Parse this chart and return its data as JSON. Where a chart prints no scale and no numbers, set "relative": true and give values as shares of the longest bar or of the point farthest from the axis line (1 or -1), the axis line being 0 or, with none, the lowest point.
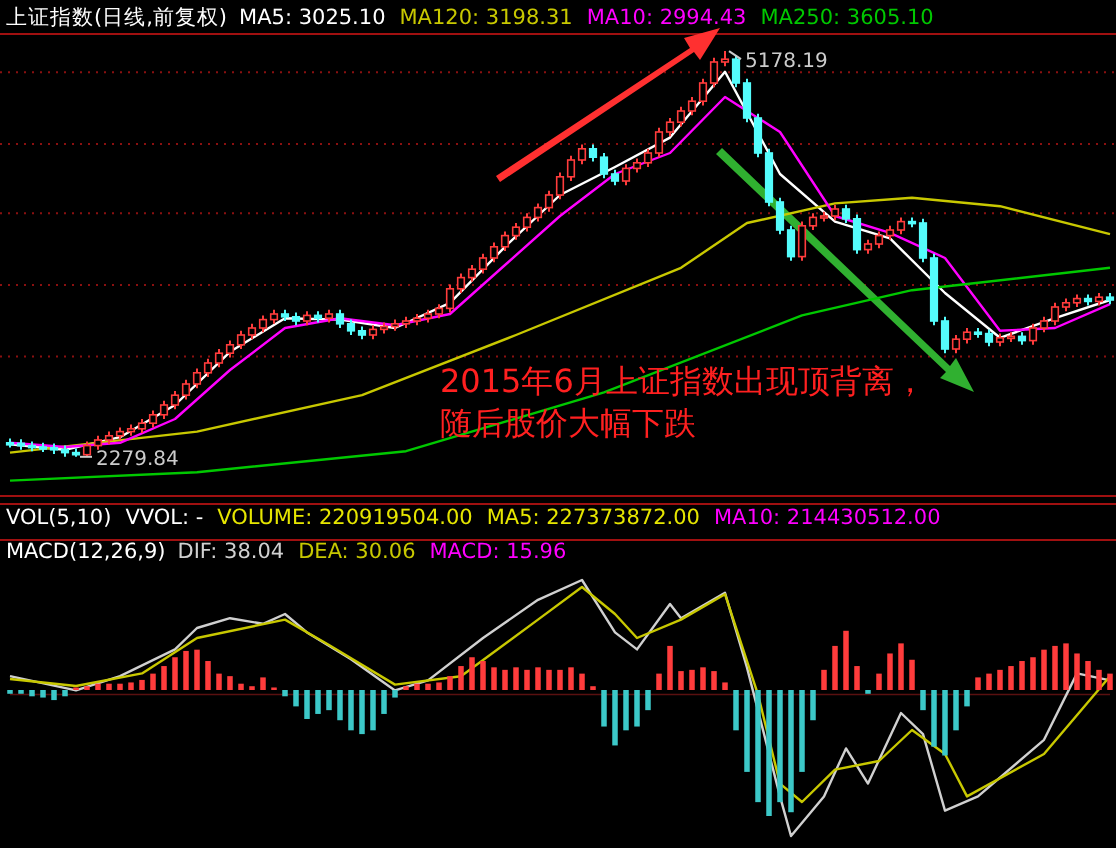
{
  "chart_data": [
    {
      "type": "candlestick",
      "title": "上证指数(日线,前复权)",
      "legend": "top left",
      "grid": "y",
      "colors": [
        "#54fcfc",
        "#54fcfc",
        "#54fcfc",
        "#54fcfc",
        "#54fcfc",
        "#54fcfc",
        "#54fcfc",
        "#ff3c3c",
        "#ff3c3c",
        "#ff3c3c",
        "#ff3c3c",
        "#ff3c3c",
        "#ff3c3c",
        "#ff3c3c",
        "#ff3c3c",
        "#ff3c3c",
        "#ff3c3c",
        "#ff3c3c",
        "#ff3c3c",
        "#ff3c3c",
        "#ff3c3c",
        "#ff3c3c",
        "#ff3c3c",
        "#ff3c3c",
        "#ff3c3c",
        "#54fcfc",
        "#54fcfc",
        "#ff3c3c",
        "#54fcfc",
        "#ff3c3c",
        "#54fcfc",
        "#54fcfc",
        "#54fcfc",
        "#ff3c3c",
        "#ff3c3c",
        "#ff3c3c",
        "#ff3c3c",
        "#ff3c3c",
        "#ff3c3c",
        "#ff3c3c",
        "#ff3c3c",
        "#ff3c3c",
        "#ff3c3c",
        "#ff3c3c",
        "#ff3c3c",
        "#ff3c3c",
        "#ff3c3c",
        "#ff3c3c",
        "#ff3c3c",
        "#ff3c3c",
        "#ff3c3c",
        "#ff3c3c",
        "#ff3c3c",
        "#54fcfc",
        "#54fcfc",
        "#54fcfc",
        "#ff3c3c",
        "#ff3c3c",
        "#ff3c3c",
        "#ff3c3c",
        "#ff3c3c",
        "#ff3c3c",
        "#ff3c3c",
        "#ff3c3c",
        "#ff3c3c",
        "#ff3c3c",
        "#54fcfc",
        "#54fcfc",
        "#54fcfc",
        "#54fcfc",
        "#54fcfc",
        "#54fcfc",
        "#ff3c3c",
        "#ff3c3c",
        "#ff3c3c",
        "#ff3c3c",
        "#54fcfc",
        "#54fcfc",
        "#ff3c3c",
        "#ff3c3c",
        "#ff3c3c",
        "#ff3c3c",
        "#54fcfc",
        "#54fcfc",
        "#54fcfc",
        "#54fcfc",
        "#ff3c3c",
        "#ff3c3c",
        "#54fcfc",
        "#54fcfc",
        "#ff3c3c",
        "#ff3c3c",
        "#54fcfc",
        "#ff3c3c",
        "#ff3c3c",
        "#ff3c3c",
        "#ff3c3c",
        "#ff3c3c",
        "#54fcfc",
        "#ff3c3c",
        "#54fcfc"
      ],
      "ylim": [
        2000,
        5300
      ],
      "yticks": [
        {
          "value": 2997,
          "label": null
        },
        {
          "value": 3508,
          "label": null
        },
        {
          "value": 4019,
          "label": null
        },
        {
          "value": 4515,
          "label": null
        },
        {
          "value": 5026,
          "label": null
        }
      ],
      "categories": [
        null,
        null,
        null,
        null,
        null,
        null,
        null,
        null,
        null,
        null,
        null,
        null,
        null,
        null,
        null,
        null,
        null,
        null,
        null,
        null,
        null,
        null,
        null,
        null,
        null,
        null,
        null,
        null,
        null,
        null,
        null,
        null,
        null,
        null,
        null,
        null,
        null,
        null,
        null,
        null,
        null,
        null,
        null,
        null,
        null,
        null,
        null,
        null,
        null,
        null,
        null,
        null,
        null,
        null,
        null,
        null,
        null,
        null,
        null,
        null,
        null,
        null,
        null,
        null,
        null,
        null,
        null,
        null,
        null,
        null,
        null,
        null,
        null,
        null,
        null,
        null,
        null,
        null,
        null,
        null,
        null,
        null,
        null,
        null,
        null,
        null,
        null,
        null,
        null,
        null,
        null,
        null,
        null,
        null,
        null,
        null,
        null,
        null,
        null,
        null,
        null
      ],
      "ohlc": [
        [
          2380,
          2410,
          2346,
          2376
        ],
        [
          2376,
          2406,
          2330,
          2360
        ],
        [
          2360,
          2390,
          2320,
          2350
        ],
        [
          2350,
          2380,
          2315,
          2345
        ],
        [
          2345,
          2375,
          2300,
          2330
        ],
        [
          2330,
          2360,
          2280,
          2310
        ],
        [
          2310,
          2340,
          2279.84,
          2295
        ],
        [
          2295,
          2390,
          2285,
          2360
        ],
        [
          2360,
          2430,
          2330,
          2400
        ],
        [
          2400,
          2460,
          2370,
          2430
        ],
        [
          2430,
          2490,
          2400,
          2460
        ],
        [
          2460,
          2510,
          2430,
          2480
        ],
        [
          2480,
          2550,
          2450,
          2520
        ],
        [
          2520,
          2610,
          2490,
          2580
        ],
        [
          2580,
          2680,
          2550,
          2650
        ],
        [
          2650,
          2750,
          2620,
          2720
        ],
        [
          2720,
          2830,
          2690,
          2800
        ],
        [
          2800,
          2910,
          2770,
          2880
        ],
        [
          2880,
          2980,
          2850,
          2950
        ],
        [
          2950,
          3050,
          2920,
          3020
        ],
        [
          3020,
          3110,
          2990,
          3080
        ],
        [
          3080,
          3180,
          3050,
          3150
        ],
        [
          3150,
          3230,
          3120,
          3200
        ],
        [
          3200,
          3290,
          3170,
          3260
        ],
        [
          3260,
          3330,
          3230,
          3300
        ],
        [
          3300,
          3330,
          3250,
          3280
        ],
        [
          3280,
          3310,
          3220,
          3250
        ],
        [
          3250,
          3320,
          3220,
          3290
        ],
        [
          3290,
          3320,
          3240,
          3270
        ],
        [
          3270,
          3330,
          3240,
          3300
        ],
        [
          3300,
          3330,
          3200,
          3230
        ],
        [
          3230,
          3260,
          3150,
          3180
        ],
        [
          3180,
          3210,
          3120,
          3150
        ],
        [
          3150,
          3220,
          3120,
          3190
        ],
        [
          3190,
          3240,
          3160,
          3210
        ],
        [
          3210,
          3260,
          3180,
          3230
        ],
        [
          3230,
          3280,
          3200,
          3250
        ],
        [
          3250,
          3300,
          3220,
          3270
        ],
        [
          3270,
          3330,
          3240,
          3300
        ],
        [
          3300,
          3370,
          3270,
          3340
        ],
        [
          3340,
          3510,
          3310,
          3480
        ],
        [
          3480,
          3590,
          3450,
          3560
        ],
        [
          3560,
          3650,
          3530,
          3620
        ],
        [
          3620,
          3730,
          3590,
          3700
        ],
        [
          3700,
          3810,
          3670,
          3780
        ],
        [
          3780,
          3890,
          3750,
          3860
        ],
        [
          3860,
          3950,
          3830,
          3920
        ],
        [
          3920,
          4020,
          3890,
          3990
        ],
        [
          3990,
          4090,
          3960,
          4060
        ],
        [
          4060,
          4180,
          4030,
          4150
        ],
        [
          4150,
          4310,
          4120,
          4280
        ],
        [
          4280,
          4430,
          4250,
          4400
        ],
        [
          4400,
          4510,
          4370,
          4480
        ],
        [
          4480,
          4510,
          4390,
          4420
        ],
        [
          4420,
          4450,
          4270,
          4300
        ],
        [
          4300,
          4330,
          4220,
          4250
        ],
        [
          4250,
          4370,
          4220,
          4340
        ],
        [
          4340,
          4410,
          4310,
          4380
        ],
        [
          4380,
          4480,
          4350,
          4450
        ],
        [
          4450,
          4630,
          4420,
          4600
        ],
        [
          4600,
          4700,
          4570,
          4670
        ],
        [
          4670,
          4780,
          4640,
          4750
        ],
        [
          4750,
          4850,
          4720,
          4820
        ],
        [
          4820,
          4980,
          4790,
          4950
        ],
        [
          4950,
          5130,
          4920,
          5100
        ],
        [
          5100,
          5178.19,
          5070,
          5120
        ],
        [
          5120,
          5150,
          4920,
          4950
        ],
        [
          4950,
          4980,
          4670,
          4700
        ],
        [
          4700,
          4730,
          4420,
          4450
        ],
        [
          4450,
          4480,
          4070,
          4100
        ],
        [
          4100,
          4130,
          3870,
          3900
        ],
        [
          3900,
          3930,
          3680,
          3710
        ],
        [
          3710,
          3960,
          3680,
          3930
        ],
        [
          3930,
          4020,
          3900,
          3990
        ],
        [
          3990,
          4030,
          3960,
          4000
        ],
        [
          4000,
          4080,
          3970,
          4050
        ],
        [
          4050,
          4080,
          3950,
          3980
        ],
        [
          3980,
          4010,
          3730,
          3760
        ],
        [
          3760,
          3830,
          3730,
          3800
        ],
        [
          3800,
          3890,
          3770,
          3860
        ],
        [
          3860,
          3930,
          3830,
          3900
        ],
        [
          3900,
          3990,
          3870,
          3960
        ],
        [
          3960,
          3990,
          3920,
          3950
        ],
        [
          3950,
          3980,
          3670,
          3700
        ],
        [
          3700,
          3730,
          3220,
          3250
        ],
        [
          3250,
          3280,
          3020,
          3050
        ],
        [
          3050,
          3150,
          3020,
          3120
        ],
        [
          3120,
          3200,
          3090,
          3170
        ],
        [
          3170,
          3200,
          3130,
          3160
        ],
        [
          3160,
          3190,
          3070,
          3100
        ],
        [
          3100,
          3160,
          3070,
          3130
        ],
        [
          3130,
          3170,
          3100,
          3140
        ],
        [
          3140,
          3170,
          3080,
          3110
        ],
        [
          3110,
          3230,
          3080,
          3200
        ],
        [
          3200,
          3280,
          3170,
          3250
        ],
        [
          3250,
          3380,
          3220,
          3350
        ],
        [
          3350,
          3410,
          3320,
          3380
        ],
        [
          3380,
          3440,
          3350,
          3410
        ],
        [
          3410,
          3440,
          3360,
          3390
        ],
        [
          3390,
          3450,
          3360,
          3420
        ],
        [
          3420,
          3450,
          3370,
          3400
        ]
      ],
      "series": [
        {
          "name": "MA5: 3025.10",
          "type": "line",
          "color": "#ffffff",
          "values": [
            2370,
            null,
            null,
            null,
            null,
            2330,
            null,
            null,
            null,
            null,
            2420,
            null,
            null,
            null,
            null,
            2650,
            null,
            null,
            null,
            null,
            3030,
            null,
            null,
            null,
            null,
            3270,
            null,
            null,
            null,
            null,
            3260,
            null,
            null,
            null,
            null,
            3200,
            null,
            null,
            null,
            null,
            3380,
            null,
            null,
            null,
            null,
            3780,
            null,
            null,
            null,
            null,
            4150,
            null,
            null,
            null,
            null,
            4350,
            null,
            null,
            null,
            null,
            4560,
            null,
            null,
            null,
            null,
            5030,
            null,
            null,
            null,
            null,
            4300,
            null,
            null,
            null,
            null,
            3960,
            null,
            null,
            null,
            null,
            3840,
            null,
            null,
            null,
            null,
            3450,
            null,
            null,
            null,
            null,
            3130,
            null,
            null,
            null,
            null,
            3270,
            null,
            null,
            null,
            null,
            3400
          ]
        },
        {
          "name": "MA120: 3198.31",
          "type": "line",
          "color": "#c8c800",
          "values": [
            2310,
            null,
            null,
            null,
            null,
            null,
            null,
            null,
            null,
            null,
            null,
            null,
            null,
            null,
            null,
            null,
            null,
            2460,
            null,
            null,
            null,
            null,
            null,
            null,
            null,
            null,
            null,
            null,
            null,
            null,
            null,
            null,
            2720,
            null,
            null,
            null,
            null,
            null,
            null,
            null,
            null,
            null,
            null,
            null,
            null,
            null,
            3150,
            null,
            null,
            null,
            null,
            null,
            null,
            null,
            null,
            null,
            null,
            null,
            null,
            null,
            null,
            3630,
            null,
            null,
            null,
            null,
            null,
            3950,
            null,
            null,
            null,
            null,
            null,
            null,
            null,
            4090,
            null,
            null,
            null,
            null,
            null,
            null,
            4130,
            null,
            null,
            null,
            null,
            null,
            null,
            null,
            4070,
            null,
            null,
            null,
            null,
            null,
            null,
            null,
            null,
            null,
            3870
          ]
        },
        {
          "name": "MA10: 2994.43",
          "type": "line",
          "color": "#ff00ff",
          "values": [
            2380,
            null,
            null,
            null,
            null,
            2350,
            null,
            null,
            null,
            null,
            2380,
            null,
            null,
            null,
            null,
            2550,
            null,
            null,
            null,
            null,
            2900,
            null,
            null,
            null,
            null,
            3200,
            null,
            null,
            null,
            null,
            3270,
            null,
            null,
            null,
            null,
            3220,
            null,
            null,
            null,
            null,
            3300,
            null,
            null,
            null,
            null,
            3650,
            null,
            null,
            null,
            null,
            4000,
            null,
            null,
            null,
            null,
            4300,
            null,
            null,
            null,
            null,
            4450,
            null,
            null,
            null,
            null,
            4850,
            null,
            null,
            null,
            null,
            4600,
            null,
            null,
            null,
            null,
            4000,
            null,
            null,
            null,
            null,
            3880,
            null,
            null,
            null,
            null,
            3700,
            null,
            null,
            null,
            null,
            3180,
            null,
            null,
            null,
            null,
            3200,
            null,
            null,
            null,
            null,
            3370
          ]
        },
        {
          "name": "MA250: 3605.10",
          "type": "line",
          "color": "#00c800",
          "values": [
            2110,
            null,
            null,
            null,
            null,
            null,
            null,
            null,
            null,
            null,
            null,
            null,
            null,
            null,
            null,
            null,
            null,
            2170,
            null,
            null,
            null,
            null,
            null,
            null,
            null,
            null,
            null,
            null,
            null,
            null,
            null,
            null,
            null,
            null,
            null,
            null,
            2320,
            null,
            null,
            null,
            null,
            null,
            null,
            null,
            null,
            null,
            null,
            null,
            null,
            null,
            null,
            null,
            null,
            null,
            2740,
            null,
            null,
            null,
            null,
            null,
            null,
            null,
            null,
            null,
            null,
            null,
            null,
            null,
            null,
            null,
            null,
            null,
            3290,
            null,
            null,
            null,
            null,
            null,
            null,
            null,
            null,
            null,
            3470,
            null,
            null,
            null,
            null,
            null,
            null,
            null,
            null,
            null,
            null,
            null,
            null,
            null,
            null,
            null,
            null,
            null,
            3630
          ]
        }
      ],
      "annotations": [
        "5178.19",
        "2279.84",
        "2015年6月上证指数出现顶背离，随后股价大幅下跌"
      ]
    },
    {
      "type": "other",
      "annotations": [
        "VOL(5,10)",
        "VVOL: -",
        "VOLUME: 220919504.00",
        "MA5: 227373872.00",
        "MA10: 214430512.00"
      ],
      "colors": [
        "#ffffff",
        "#ffffff",
        "#e6e600",
        "#e6e600",
        "#ff00ff"
      ]
    },
    {
      "type": "line",
      "title": "MACD(12,26,9)",
      "relative": true,
      "categories": [
        null,
        null,
        null,
        null,
        null,
        null,
        null,
        null,
        null,
        null,
        null,
        null,
        null,
        null,
        null,
        null,
        null,
        null,
        null,
        null,
        null,
        null,
        null,
        null,
        null,
        null,
        null,
        null,
        null,
        null,
        null,
        null,
        null,
        null,
        null,
        null,
        null,
        null,
        null,
        null,
        null,
        null,
        null,
        null,
        null,
        null,
        null,
        null,
        null,
        null,
        null,
        null,
        null,
        null,
        null,
        null,
        null,
        null,
        null,
        null,
        null,
        null,
        null,
        null,
        null,
        null,
        null,
        null,
        null,
        null,
        null,
        null,
        null,
        null,
        null,
        null,
        null,
        null,
        null,
        null,
        null,
        null,
        null,
        null,
        null,
        null,
        null,
        null,
        null,
        null,
        null,
        null,
        null,
        null,
        null,
        null,
        null,
        null,
        null,
        null,
        null
      ],
      "series": [
        {
          "name": "DIF: 38.04",
          "color": "#d0d0d0",
          "values": [
            0.13,
            null,
            null,
            null,
            null,
            null,
            0.03,
            null,
            null,
            null,
            0.13,
            null,
            null,
            null,
            null,
            0.32,
            null,
            0.47,
            null,
            null,
            0.54,
            null,
            null,
            0.5,
            null,
            0.57,
            null,
            0.44,
            null,
            null,
            null,
            0.25,
            null,
            null,
            null,
            0.03,
            null,
            null,
            0.1,
            null,
            null,
            null,
            null,
            0.4,
            null,
            null,
            null,
            null,
            0.67,
            null,
            null,
            null,
            0.81,
            null,
            null,
            0.44,
            null,
            0.32,
            null,
            null,
            0.64,
            0.54,
            null,
            null,
            null,
            0.72,
            null,
            0.19,
            null,
            null,
            -0.72,
            -1,
            null,
            null,
            -0.72,
            null,
            -0.38,
            null,
            -0.63,
            null,
            null,
            -0.13,
            null,
            -0.28,
            null,
            -0.82,
            null,
            null,
            -0.72,
            null,
            null,
            null,
            null,
            null,
            -0.32,
            null,
            null,
            0.15,
            null,
            null,
            0.1
          ]
        },
        {
          "name": "DEA: 30.06",
          "color": "#c8c800",
          "values": [
            0.11,
            null,
            null,
            null,
            null,
            null,
            0.06,
            null,
            null,
            null,
            null,
            null,
            0.15,
            null,
            null,
            null,
            null,
            0.4,
            null,
            null,
            null,
            null,
            null,
            null,
            null,
            0.53,
            null,
            null,
            null,
            0.35,
            null,
            null,
            null,
            null,
            null,
            0.07,
            null,
            null,
            null,
            null,
            null,
            0.13,
            null,
            null,
            null,
            null,
            null,
            null,
            0.53,
            null,
            null,
            null,
            0.76,
            null,
            null,
            0.57,
            null,
            0.4,
            null,
            null,
            null,
            0.53,
            null,
            null,
            null,
            0.71,
            null,
            null,
            0,
            null,
            -0.63,
            null,
            -0.76,
            null,
            null,
            -0.53,
            null,
            null,
            null,
            -0.47,
            null,
            null,
            -0.25,
            null,
            null,
            -0.42,
            null,
            -0.72,
            null,
            null,
            null,
            null,
            null,
            null,
            -0.42,
            null,
            null,
            null,
            null,
            null,
            0.13
          ]
        }
      ]
    },
    {
      "type": "bar",
      "relative": true,
      "categories": [
        null,
        null,
        null,
        null,
        null,
        null,
        null,
        null,
        null,
        null,
        null,
        null,
        null,
        null,
        null,
        null,
        null,
        null,
        null,
        null,
        null,
        null,
        null,
        null,
        null,
        null,
        null,
        null,
        null,
        null,
        null,
        null,
        null,
        null,
        null,
        null,
        null,
        null,
        null,
        null,
        null,
        null,
        null,
        null,
        null,
        null,
        null,
        null,
        null,
        null,
        null,
        null,
        null,
        null,
        null,
        null,
        null,
        null,
        null,
        null,
        null,
        null,
        null,
        null,
        null,
        null,
        null,
        null,
        null,
        null,
        null,
        null,
        null,
        null,
        null,
        null,
        null,
        null,
        null,
        null,
        null,
        null,
        null,
        null,
        null,
        null,
        null,
        null,
        null,
        null,
        null,
        null,
        null,
        null,
        null,
        null,
        null,
        null,
        null,
        null,
        null
      ],
      "series": [
        {
          "name": "MACD: 15.96",
          "color": "#ff00ff",
          "values": [
            -0.03,
            -0.03,
            -0.05,
            -0.06,
            -0.08,
            -0.05,
            0.02,
            0.03,
            0.05,
            0.05,
            0.05,
            0.06,
            0.08,
            0.13,
            0.19,
            0.26,
            0.31,
            0.32,
            0.23,
            0.13,
            0.11,
            0.05,
            0.03,
            0.1,
            0.02,
            -0.05,
            -0.13,
            -0.23,
            -0.19,
            -0.16,
            -0.24,
            -0.32,
            -0.35,
            -0.32,
            -0.19,
            -0.06,
            0.03,
            0.05,
            0.05,
            0.06,
            0.11,
            0.19,
            0.26,
            0.23,
            0.18,
            0.16,
            0.18,
            0.16,
            0.18,
            0.16,
            0.16,
            0.18,
            0.13,
            0.03,
            -0.29,
            -0.44,
            -0.32,
            -0.29,
            -0.16,
            0.13,
            0.35,
            0.15,
            0.16,
            0.18,
            0.15,
            0.06,
            -0.32,
            -0.65,
            -0.89,
            -1,
            -0.89,
            -0.97,
            -0.65,
            -0.24,
            0.16,
            0.35,
            0.47,
            0.19,
            -0.03,
            0.13,
            0.29,
            0.37,
            0.24,
            -0.16,
            -0.45,
            -0.52,
            -0.32,
            -0.13,
            0.1,
            0.13,
            0.16,
            0.19,
            0.23,
            0.26,
            0.32,
            0.35,
            0.37,
            0.29,
            0.23,
            0.16,
            0.13
          ],
          "colors": [
            "#3cc8c8",
            "#3cc8c8",
            "#3cc8c8",
            "#3cc8c8",
            "#3cc8c8",
            "#3cc8c8",
            "#ff3c3c",
            "#ff3c3c",
            "#ff3c3c",
            "#ff3c3c",
            "#ff3c3c",
            "#ff3c3c",
            "#ff3c3c",
            "#ff3c3c",
            "#ff3c3c",
            "#ff3c3c",
            "#ff3c3c",
            "#ff3c3c",
            "#ff3c3c",
            "#ff3c3c",
            "#ff3c3c",
            "#ff3c3c",
            "#ff3c3c",
            "#ff3c3c",
            "#ff3c3c",
            "#3cc8c8",
            "#3cc8c8",
            "#3cc8c8",
            "#3cc8c8",
            "#3cc8c8",
            "#3cc8c8",
            "#3cc8c8",
            "#3cc8c8",
            "#3cc8c8",
            "#3cc8c8",
            "#3cc8c8",
            "#ff3c3c",
            "#ff3c3c",
            "#ff3c3c",
            "#ff3c3c",
            "#ff3c3c",
            "#ff3c3c",
            "#ff3c3c",
            "#ff3c3c",
            "#ff3c3c",
            "#ff3c3c",
            "#ff3c3c",
            "#ff3c3c",
            "#ff3c3c",
            "#ff3c3c",
            "#ff3c3c",
            "#ff3c3c",
            "#ff3c3c",
            "#ff3c3c",
            "#3cc8c8",
            "#3cc8c8",
            "#3cc8c8",
            "#3cc8c8",
            "#3cc8c8",
            "#ff3c3c",
            "#ff3c3c",
            "#ff3c3c",
            "#ff3c3c",
            "#ff3c3c",
            "#ff3c3c",
            "#ff3c3c",
            "#3cc8c8",
            "#3cc8c8",
            "#3cc8c8",
            "#3cc8c8",
            "#3cc8c8",
            "#3cc8c8",
            "#3cc8c8",
            "#3cc8c8",
            "#ff3c3c",
            "#ff3c3c",
            "#ff3c3c",
            "#ff3c3c",
            "#3cc8c8",
            "#ff3c3c",
            "#ff3c3c",
            "#ff3c3c",
            "#ff3c3c",
            "#3cc8c8",
            "#3cc8c8",
            "#3cc8c8",
            "#3cc8c8",
            "#3cc8c8",
            "#ff3c3c",
            "#ff3c3c",
            "#ff3c3c",
            "#ff3c3c",
            "#ff3c3c",
            "#ff3c3c",
            "#ff3c3c",
            "#ff3c3c",
            "#ff3c3c",
            "#ff3c3c",
            "#ff3c3c",
            "#ff3c3c",
            "#ff3c3c"
          ]
        }
      ]
    }
  ]
}
